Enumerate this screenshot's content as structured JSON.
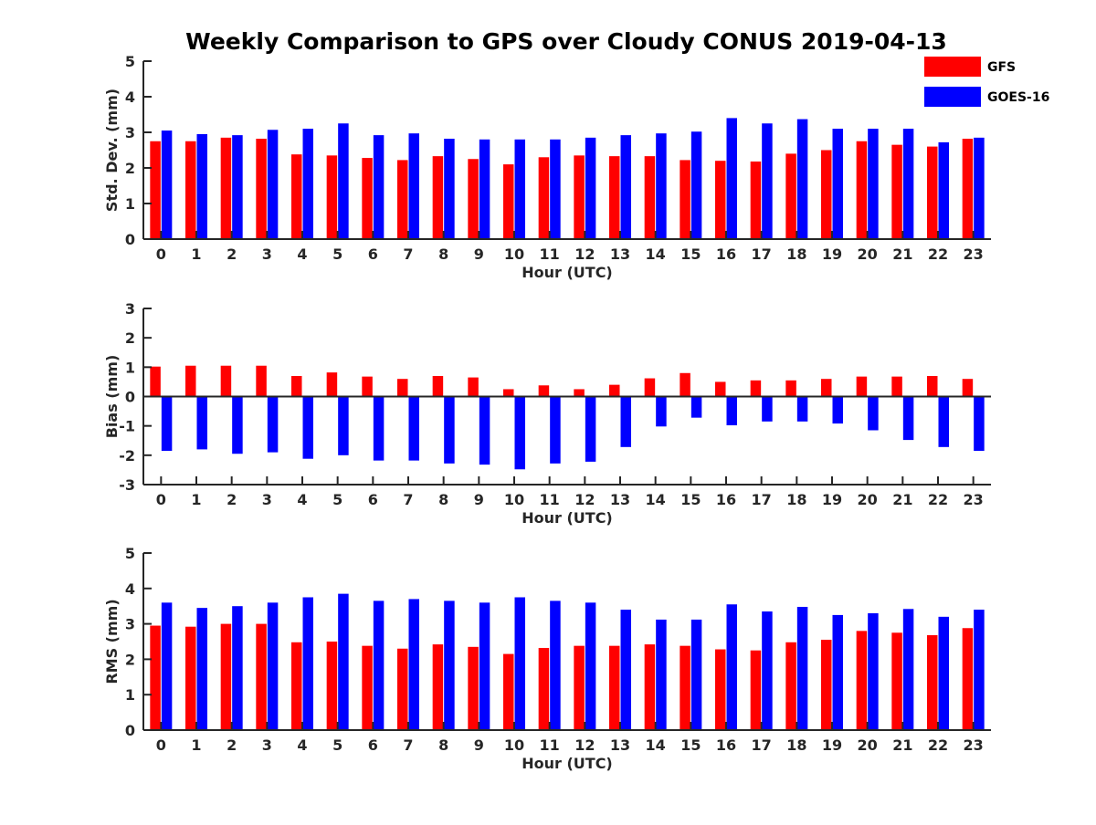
{
  "title": "Weekly Comparison to GPS over Cloudy CONUS 2019-04-13",
  "legend": [
    {
      "label": "GFS",
      "color": "#ff0000"
    },
    {
      "label": "GOES-16",
      "color": "#0000ff"
    }
  ],
  "colors": {
    "gfs": "#ff0000",
    "goes": "#0000ff",
    "axis": "#262626"
  },
  "chart_data": [
    {
      "type": "bar",
      "ylabel": "Std. Dev. (mm)",
      "xlabel": "Hour (UTC)",
      "ylim": [
        0,
        5
      ],
      "yticks": [
        0,
        1,
        2,
        3,
        4,
        5
      ],
      "categories": [
        "0",
        "1",
        "2",
        "3",
        "4",
        "5",
        "6",
        "7",
        "8",
        "9",
        "10",
        "11",
        "12",
        "13",
        "14",
        "15",
        "16",
        "17",
        "18",
        "19",
        "20",
        "21",
        "22",
        "23"
      ],
      "series": [
        {
          "name": "GFS",
          "values": [
            2.75,
            2.75,
            2.85,
            2.82,
            2.38,
            2.35,
            2.28,
            2.22,
            2.33,
            2.25,
            2.1,
            2.3,
            2.35,
            2.33,
            2.33,
            2.22,
            2.2,
            2.18,
            2.4,
            2.5,
            2.75,
            2.65,
            2.6,
            2.82
          ]
        },
        {
          "name": "GOES-16",
          "values": [
            3.05,
            2.95,
            2.92,
            3.07,
            3.1,
            3.25,
            2.92,
            2.97,
            2.82,
            2.8,
            2.8,
            2.8,
            2.85,
            2.92,
            2.97,
            3.02,
            3.4,
            3.25,
            3.37,
            3.1,
            3.1,
            3.1,
            2.72,
            2.85
          ]
        }
      ]
    },
    {
      "type": "bar",
      "ylabel": "Bias (mm)",
      "xlabel": "Hour (UTC)",
      "ylim": [
        -3,
        3
      ],
      "yticks": [
        -3,
        -2,
        -1,
        0,
        1,
        2,
        3
      ],
      "categories": [
        "0",
        "1",
        "2",
        "3",
        "4",
        "5",
        "6",
        "7",
        "8",
        "9",
        "10",
        "11",
        "12",
        "13",
        "14",
        "15",
        "16",
        "17",
        "18",
        "19",
        "20",
        "21",
        "22",
        "23"
      ],
      "series": [
        {
          "name": "GFS",
          "values": [
            1.02,
            1.05,
            1.05,
            1.05,
            0.7,
            0.82,
            0.68,
            0.6,
            0.7,
            0.65,
            0.25,
            0.38,
            0.25,
            0.4,
            0.62,
            0.8,
            0.5,
            0.55,
            0.55,
            0.6,
            0.68,
            0.68,
            0.7,
            0.6
          ]
        },
        {
          "name": "GOES-16",
          "values": [
            -1.85,
            -1.8,
            -1.95,
            -1.9,
            -2.12,
            -2.0,
            -2.18,
            -2.18,
            -2.28,
            -2.32,
            -2.48,
            -2.28,
            -2.22,
            -1.72,
            -1.02,
            -0.72,
            -0.98,
            -0.85,
            -0.85,
            -0.92,
            -1.15,
            -1.48,
            -1.72,
            -1.85
          ]
        }
      ]
    },
    {
      "type": "bar",
      "ylabel": "RMS (mm)",
      "xlabel": "Hour (UTC)",
      "ylim": [
        0,
        5
      ],
      "yticks": [
        0,
        1,
        2,
        3,
        4,
        5
      ],
      "categories": [
        "0",
        "1",
        "2",
        "3",
        "4",
        "5",
        "6",
        "7",
        "8",
        "9",
        "10",
        "11",
        "12",
        "13",
        "14",
        "15",
        "16",
        "17",
        "18",
        "19",
        "20",
        "21",
        "22",
        "23"
      ],
      "series": [
        {
          "name": "GFS",
          "values": [
            2.95,
            2.92,
            3.0,
            3.0,
            2.48,
            2.5,
            2.38,
            2.3,
            2.42,
            2.35,
            2.15,
            2.32,
            2.38,
            2.38,
            2.42,
            2.38,
            2.28,
            2.25,
            2.48,
            2.55,
            2.8,
            2.75,
            2.68,
            2.88
          ]
        },
        {
          "name": "GOES-16",
          "values": [
            3.6,
            3.45,
            3.5,
            3.6,
            3.75,
            3.85,
            3.65,
            3.7,
            3.65,
            3.6,
            3.75,
            3.65,
            3.6,
            3.4,
            3.12,
            3.12,
            3.55,
            3.35,
            3.48,
            3.25,
            3.3,
            3.42,
            3.2,
            3.4
          ]
        }
      ]
    }
  ]
}
